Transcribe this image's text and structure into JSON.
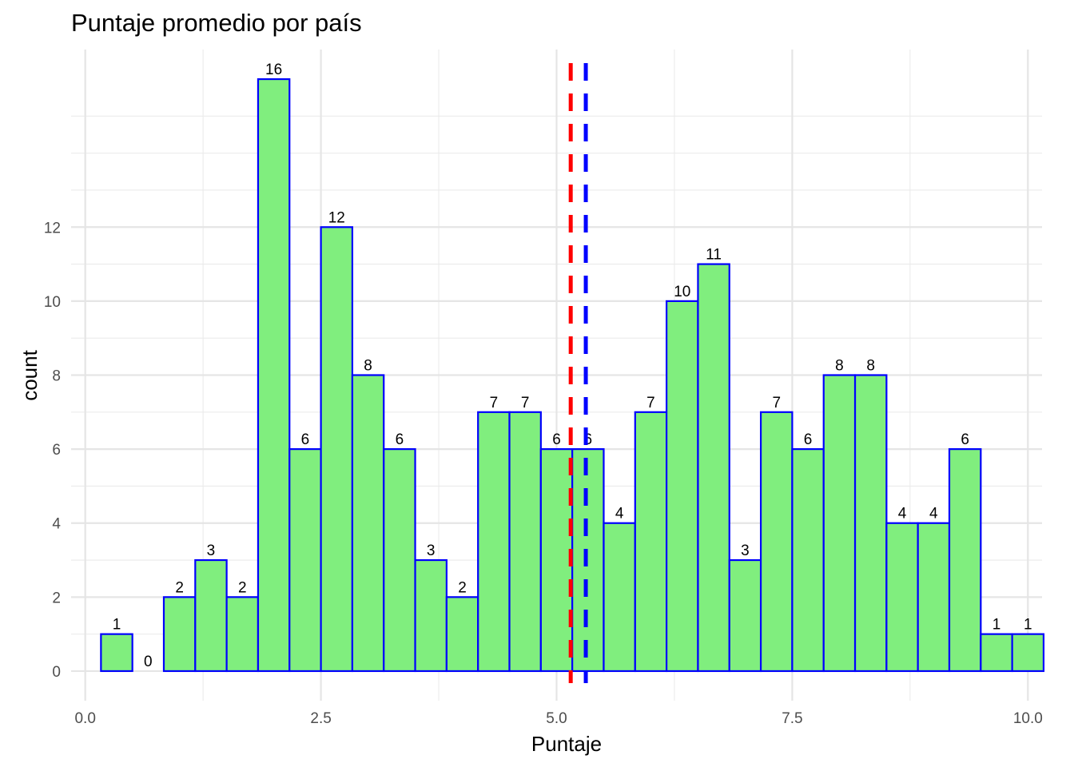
{
  "chart_data": {
    "type": "bar",
    "title": "Puntaje promedio por país",
    "xlabel": "Puntaje",
    "ylabel": "count",
    "bin_centers": [
      0.3333,
      0.6667,
      1.0,
      1.3333,
      1.6667,
      2.0,
      2.3333,
      2.6667,
      3.0,
      3.3333,
      3.6667,
      4.0,
      4.3333,
      4.6667,
      5.0,
      5.3333,
      5.6667,
      6.0,
      6.3333,
      6.6667,
      7.0,
      7.3333,
      7.6667,
      8.0,
      8.3333,
      8.6667,
      9.0,
      9.3333,
      9.6667,
      10.0
    ],
    "bin_width": 0.3333,
    "values": [
      1,
      0,
      2,
      3,
      2,
      16,
      6,
      12,
      8,
      6,
      3,
      2,
      7,
      7,
      6,
      6,
      4,
      7,
      10,
      11,
      3,
      7,
      6,
      8,
      8,
      4,
      4,
      6,
      1,
      1
    ],
    "bar_labels": [
      "1",
      "0",
      "2",
      "3",
      "2",
      "16",
      "6",
      "12",
      "8",
      "6",
      "3",
      "2",
      "7",
      "7",
      "6",
      "6",
      "4",
      "7",
      "10",
      "11",
      "3",
      "7",
      "6",
      "8",
      "8",
      "4",
      "4",
      "6",
      "1",
      "1"
    ],
    "xlim": [
      -0.15,
      10.15
    ],
    "ylim": [
      -0.8,
      16.8
    ],
    "x_ticks": [
      0,
      2.5,
      5,
      7.5,
      10
    ],
    "x_tick_labels": [
      "0.0",
      "2.5",
      "5.0",
      "7.5",
      "10.0"
    ],
    "y_ticks": [
      0,
      2,
      4,
      6,
      8,
      10,
      12
    ],
    "y_tick_labels": [
      "0",
      "2",
      "4",
      "6",
      "8",
      "10",
      "12"
    ],
    "y_minor_gridlines": [
      1,
      3,
      5,
      7,
      9,
      11,
      13,
      14,
      15
    ],
    "vlines": [
      {
        "x": 5.15,
        "color": "#ff0000",
        "style": "dashed"
      },
      {
        "x": 5.31,
        "color": "#0000ff",
        "style": "dashed"
      }
    ],
    "bar_fill": "#80ee7e",
    "bar_stroke": "#0000ff",
    "grid": true,
    "legend": "none"
  }
}
